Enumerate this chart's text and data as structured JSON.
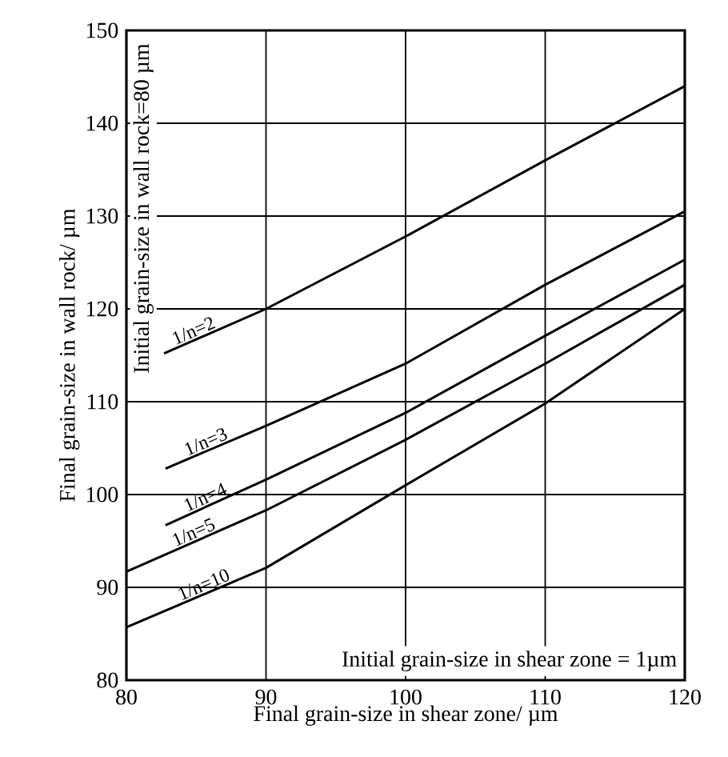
{
  "chart_data": {
    "type": "line",
    "xlabel": "Final grain-size in shear zone/ µm",
    "ylabel": "Final grain-size in wall rock/ µm",
    "annotations": [
      "Initial grain-size in wall rock=80 µm",
      "Initial grain-size in shear zone = 1µm"
    ],
    "xlim": [
      80,
      120
    ],
    "ylim": [
      80,
      150
    ],
    "xticks": [
      80,
      90,
      100,
      110,
      120
    ],
    "yticks": [
      80,
      90,
      100,
      110,
      120,
      130,
      140,
      150
    ],
    "grid": true,
    "marker": "none",
    "line_style": "solid",
    "series": [
      {
        "name": "1/n=2",
        "color": "#000000",
        "x": [
          82.7,
          90,
          100,
          110,
          120
        ],
        "values": [
          115.2,
          120,
          127.8,
          136,
          144
        ]
      },
      {
        "name": "1/n=3",
        "color": "#000000",
        "x": [
          82.8,
          90,
          100,
          110,
          120
        ],
        "values": [
          102.8,
          107.4,
          114.1,
          122.6,
          130.5
        ]
      },
      {
        "name": "1/n=4",
        "color": "#000000",
        "x": [
          82.8,
          90,
          100,
          110,
          120
        ],
        "values": [
          96.7,
          101.6,
          108.8,
          117.1,
          125.3
        ]
      },
      {
        "name": "1/n=5",
        "color": "#000000",
        "x": [
          80,
          90,
          100,
          110,
          120
        ],
        "values": [
          91.7,
          98.3,
          105.9,
          114.1,
          122.6
        ]
      },
      {
        "name": "1/n=10",
        "color": "#000000",
        "x": [
          80,
          90,
          100,
          110,
          120
        ],
        "values": [
          85.7,
          92.1,
          101.0,
          109.8,
          120
        ]
      }
    ]
  }
}
